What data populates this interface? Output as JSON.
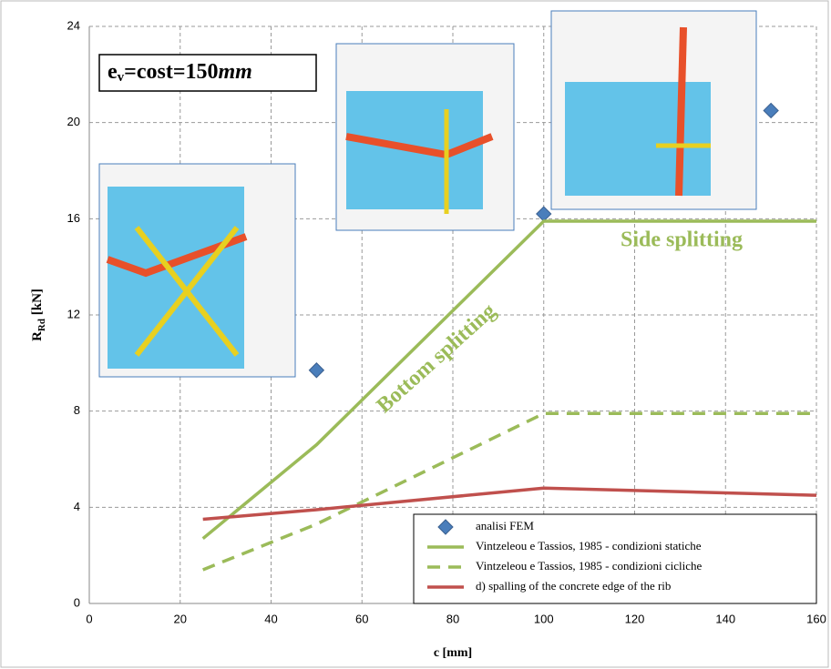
{
  "chart_data": {
    "type": "line",
    "x_label": "c [mm]",
    "y_label": {
      "main": "R",
      "sub": "Rd",
      "unit": " [kN]"
    },
    "annotation_box": {
      "main": "e",
      "sub": "v",
      "rest": "=cost=150",
      "unit": "mm"
    },
    "annotations": [
      "Side splitting",
      "Bottom splitting"
    ],
    "xlim": [
      0,
      160
    ],
    "xticks": [
      0,
      20,
      40,
      60,
      80,
      100,
      120,
      140,
      160
    ],
    "ylim": [
      0,
      24
    ],
    "yticks": [
      0,
      4,
      8,
      12,
      16,
      20,
      24
    ],
    "grid": true,
    "legend": "lower right",
    "series": [
      {
        "name": "analisi FEM",
        "kind": "scatter",
        "color": "#4a7ebb",
        "x": [
          50,
          100,
          150
        ],
        "values": [
          9.7,
          16.2,
          20.5
        ]
      },
      {
        "name": "Vintzeleou e Tassios, 1985 - condizioni statiche",
        "kind": "line",
        "dash": false,
        "color": "#9bbb59",
        "x": [
          25,
          50,
          100,
          160
        ],
        "values": [
          2.7,
          6.6,
          15.9,
          15.9
        ]
      },
      {
        "name": "Vintzeleou e Tassios, 1985 - condizioni cicliche",
        "kind": "line",
        "dash": true,
        "color": "#9bbb59",
        "x": [
          25,
          50,
          100,
          160
        ],
        "values": [
          1.4,
          3.3,
          7.9,
          7.9
        ]
      },
      {
        "name": "d) spalling of the concrete edge of the rib",
        "kind": "line",
        "dash": false,
        "color": "#c0504d",
        "x": [
          25,
          50,
          100,
          160
        ],
        "values": [
          3.5,
          3.9,
          4.8,
          4.5
        ]
      }
    ]
  }
}
